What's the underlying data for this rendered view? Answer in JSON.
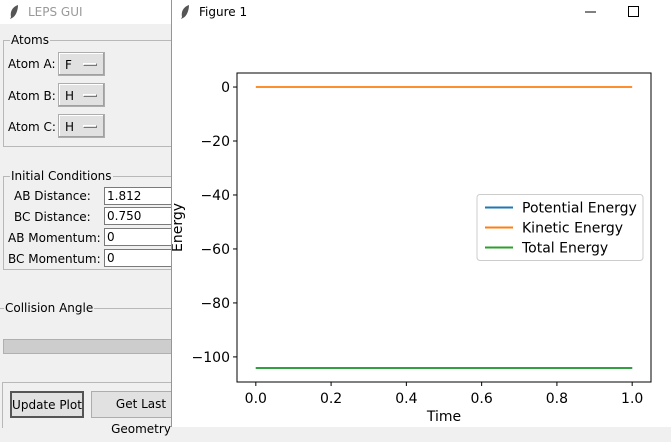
{
  "main_window": {
    "title": "LEPS GUI",
    "atoms": {
      "label": "Atoms",
      "rows": [
        {
          "label": "Atom A:",
          "value": "F"
        },
        {
          "label": "Atom B:",
          "value": "H"
        },
        {
          "label": "Atom C:",
          "value": "H"
        }
      ]
    },
    "initial_conditions": {
      "label": "Initial Conditions",
      "rows": [
        {
          "label": "AB Distance:",
          "value": "1.812"
        },
        {
          "label": "BC Distance:",
          "value": "0.750"
        },
        {
          "label": "AB Momentum:",
          "value": "0"
        },
        {
          "label": "BC Momentum:",
          "value": "0"
        }
      ]
    },
    "collision_angle": {
      "label": "Collision Angle"
    },
    "buttons": [
      "Update Plot",
      "Get Last Geometry"
    ]
  },
  "figure_window": {
    "title": "Figure 1"
  },
  "chart_data": {
    "type": "line",
    "xlabel": "Time",
    "ylabel": "Energy",
    "x": [
      0,
      1
    ],
    "series": [
      {
        "name": "Potential Energy",
        "color": "#1f77b4",
        "values": [
          -104.1,
          -104.1
        ]
      },
      {
        "name": "Kinetic Energy",
        "color": "#ff7f0e",
        "values": [
          0,
          0
        ]
      },
      {
        "name": "Total Energy",
        "color": "#2ca02c",
        "values": [
          -104.1,
          -104.1
        ]
      }
    ],
    "xlim": [
      -0.05,
      1.05
    ],
    "xticks": [
      {
        "value": 0,
        "label": "0.0"
      },
      0.2,
      0.4,
      0.6,
      0.8,
      {
        "value": 1,
        "label": "1.0"
      }
    ],
    "ylim": [
      -109.3,
      5.2
    ],
    "yticks": [
      0,
      {
        "value": -20,
        "label": "−20"
      },
      {
        "value": -40,
        "label": "−40"
      },
      {
        "value": -60,
        "label": "−60"
      },
      {
        "value": -80,
        "label": "−80"
      },
      {
        "value": -100,
        "label": "−100"
      }
    ],
    "legend": "center right",
    "grid": false
  }
}
